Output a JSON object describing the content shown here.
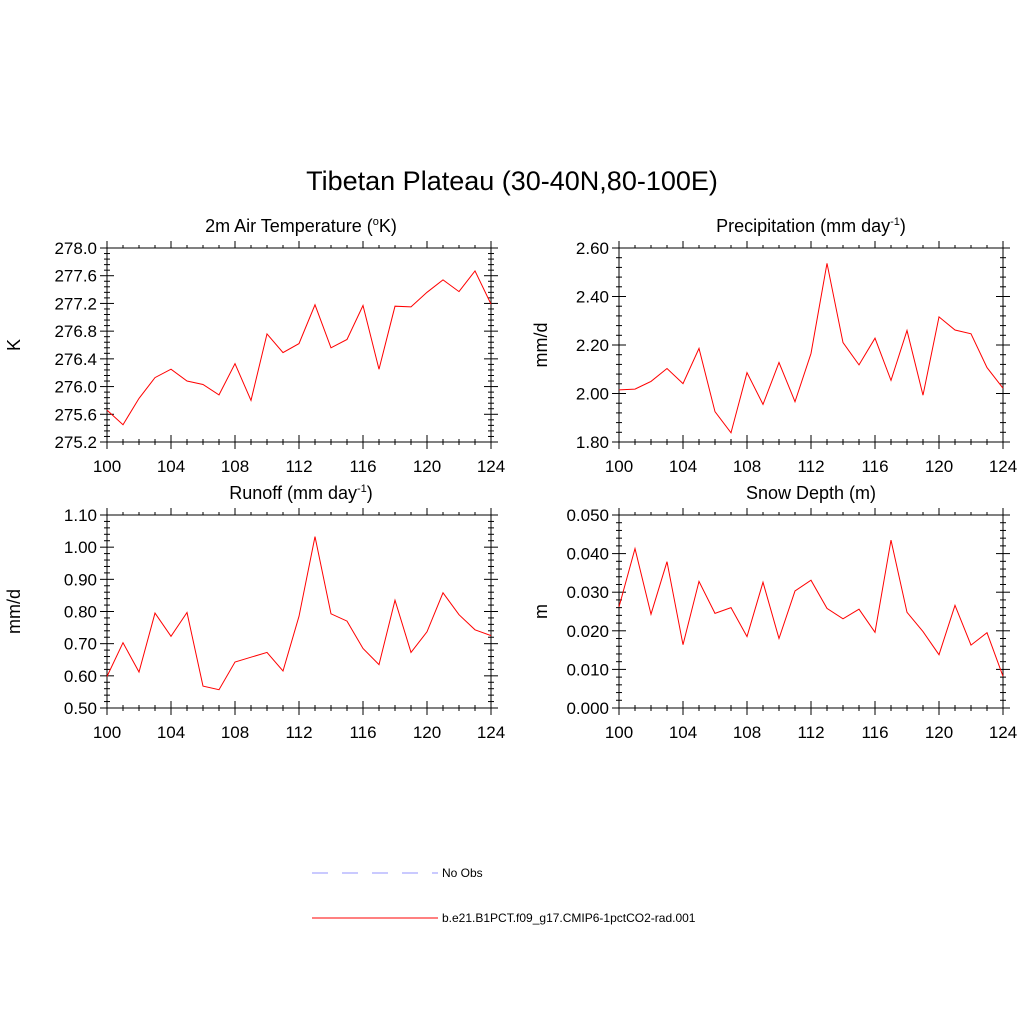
{
  "figure": {
    "title": "Tibetan Plateau (30-40N,80-100E)"
  },
  "chart_data": [
    {
      "type": "line",
      "title_main": "2m Air Temperature (",
      "title_sup": "o",
      "title_tail": "K)",
      "ylabel": "K",
      "xlim": [
        100,
        124
      ],
      "ylim": [
        275.2,
        278.0
      ],
      "x_ticks": [
        "100",
        "104",
        "108",
        "112",
        "116",
        "120",
        "124"
      ],
      "y_ticks": [
        "275.2",
        "275.6",
        "276.0",
        "276.4",
        "276.8",
        "277.2",
        "277.6",
        "278.0"
      ],
      "x": [
        100,
        101,
        102,
        103,
        104,
        105,
        106,
        107,
        108,
        109,
        110,
        111,
        112,
        113,
        114,
        115,
        116,
        117,
        118,
        119,
        120,
        121,
        122,
        123,
        124
      ],
      "series": [
        {
          "name": "b.e21.B1PCT.f09_g17.CMIP6-1pctCO2-rad.001",
          "color": "#ff0000",
          "values": [
            275.66,
            275.45,
            275.83,
            276.13,
            276.25,
            276.08,
            276.03,
            275.88,
            276.33,
            275.8,
            276.76,
            276.49,
            276.62,
            277.18,
            276.56,
            276.68,
            277.17,
            276.25,
            277.16,
            277.15,
            277.36,
            277.54,
            277.37,
            277.67,
            277.19
          ]
        }
      ]
    },
    {
      "type": "line",
      "title_main": "Precipitation (mm day",
      "title_sup": "-1",
      "title_tail": ")",
      "ylabel": "mm/d",
      "xlim": [
        100,
        124
      ],
      "ylim": [
        1.8,
        2.6
      ],
      "x_ticks": [
        "100",
        "104",
        "108",
        "112",
        "116",
        "120",
        "124"
      ],
      "y_ticks": [
        "1.80",
        "2.00",
        "2.20",
        "2.40",
        "2.60"
      ],
      "x": [
        100,
        101,
        102,
        103,
        104,
        105,
        106,
        107,
        108,
        109,
        110,
        111,
        112,
        113,
        114,
        115,
        116,
        117,
        118,
        119,
        120,
        121,
        122,
        123,
        124
      ],
      "series": [
        {
          "name": "b.e21.B1PCT.f09_g17.CMIP6-1pctCO2-rad.001",
          "color": "#ff0000",
          "values": [
            2.015,
            2.018,
            2.05,
            2.103,
            2.041,
            2.186,
            1.925,
            1.838,
            2.086,
            1.955,
            2.128,
            1.966,
            2.165,
            2.537,
            2.21,
            2.118,
            2.228,
            2.054,
            2.26,
            1.993,
            2.316,
            2.262,
            2.246,
            2.107,
            2.022
          ]
        }
      ]
    },
    {
      "type": "line",
      "title_main": "Runoff (mm day",
      "title_sup": "-1",
      "title_tail": ")",
      "ylabel": "mm/d",
      "xlim": [
        100,
        124
      ],
      "ylim": [
        0.5,
        1.1
      ],
      "x_ticks": [
        "100",
        "104",
        "108",
        "112",
        "116",
        "120",
        "124"
      ],
      "y_ticks": [
        "0.50",
        "0.60",
        "0.70",
        "0.80",
        "0.90",
        "1.00",
        "1.10"
      ],
      "x": [
        100,
        101,
        102,
        103,
        104,
        105,
        106,
        107,
        108,
        109,
        110,
        111,
        112,
        113,
        114,
        115,
        116,
        117,
        118,
        119,
        120,
        121,
        122,
        123,
        124
      ],
      "series": [
        {
          "name": "b.e21.B1PCT.f09_g17.CMIP6-1pctCO2-rad.001",
          "color": "#ff0000",
          "values": [
            0.598,
            0.703,
            0.612,
            0.795,
            0.723,
            0.797,
            0.568,
            0.557,
            0.643,
            0.658,
            0.673,
            0.615,
            0.785,
            1.033,
            0.793,
            0.77,
            0.685,
            0.635,
            0.835,
            0.673,
            0.737,
            0.858,
            0.79,
            0.743,
            0.725
          ]
        }
      ]
    },
    {
      "type": "line",
      "title_main": "Snow Depth (m)",
      "title_sup": "",
      "title_tail": "",
      "ylabel": "m",
      "xlim": [
        100,
        124
      ],
      "ylim": [
        0.0,
        0.05
      ],
      "x_ticks": [
        "100",
        "104",
        "108",
        "112",
        "116",
        "120",
        "124"
      ],
      "y_ticks": [
        "0.000",
        "0.010",
        "0.020",
        "0.030",
        "0.040",
        "0.050"
      ],
      "x": [
        100,
        101,
        102,
        103,
        104,
        105,
        106,
        107,
        108,
        109,
        110,
        111,
        112,
        113,
        114,
        115,
        116,
        117,
        118,
        119,
        120,
        121,
        122,
        123,
        124
      ],
      "series": [
        {
          "name": "b.e21.B1PCT.f09_g17.CMIP6-1pctCO2-rad.001",
          "color": "#ff0000",
          "values": [
            0.0262,
            0.0413,
            0.0243,
            0.0379,
            0.0164,
            0.0328,
            0.0245,
            0.026,
            0.0185,
            0.0326,
            0.018,
            0.0303,
            0.0331,
            0.0258,
            0.0231,
            0.0256,
            0.0196,
            0.0435,
            0.0248,
            0.0198,
            0.0138,
            0.0266,
            0.0163,
            0.0195,
            0.0082
          ]
        }
      ]
    }
  ],
  "legend": {
    "items": [
      {
        "label": "No Obs",
        "color": "#aaaaff",
        "style": "dashed"
      },
      {
        "label": "b.e21.B1PCT.f09_g17.CMIP6-1pctCO2-rad.001",
        "color": "#ff0000",
        "style": "solid"
      }
    ]
  }
}
